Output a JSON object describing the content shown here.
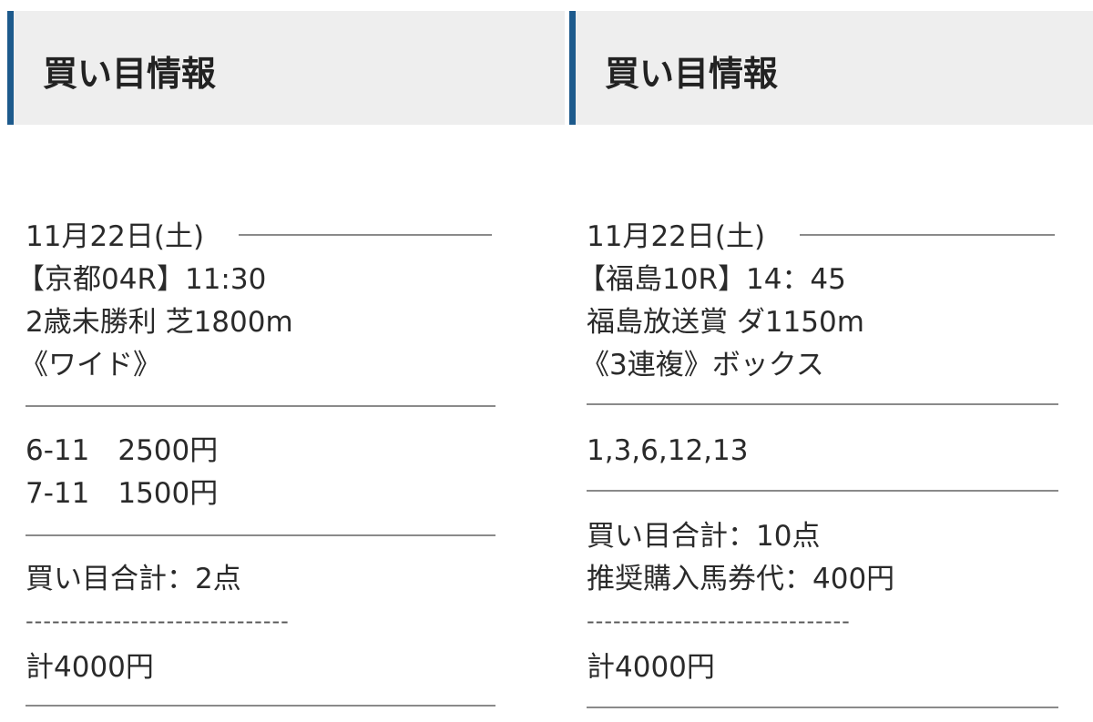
{
  "left": {
    "header": "買い目情報",
    "date": "11月22日(土)",
    "race": "【京都04R】11:30",
    "race_info": "2歳未勝利 芝1800m",
    "bet_type": "《ワイド》",
    "bets": [
      "6-11　2500円",
      "7-11　1500円"
    ],
    "summary": [
      "買い目合計：2点"
    ],
    "dashes": "------------------------------",
    "total": "計4000円"
  },
  "right": {
    "header": "買い目情報",
    "date": "11月22日(土)",
    "race": "【福島10R】14：45",
    "race_info": "福島放送賞 ダ1150m",
    "bet_type": "《3連複》ボックス",
    "bets": [
      "1,3,6,12,13"
    ],
    "summary": [
      "買い目合計：10点",
      "推奨購入馬券代：400円"
    ],
    "dashes": "------------------------------",
    "total": "計4000円"
  },
  "colors": {
    "accent": "#1d5a8c",
    "header_bg": "#eeeeee"
  }
}
